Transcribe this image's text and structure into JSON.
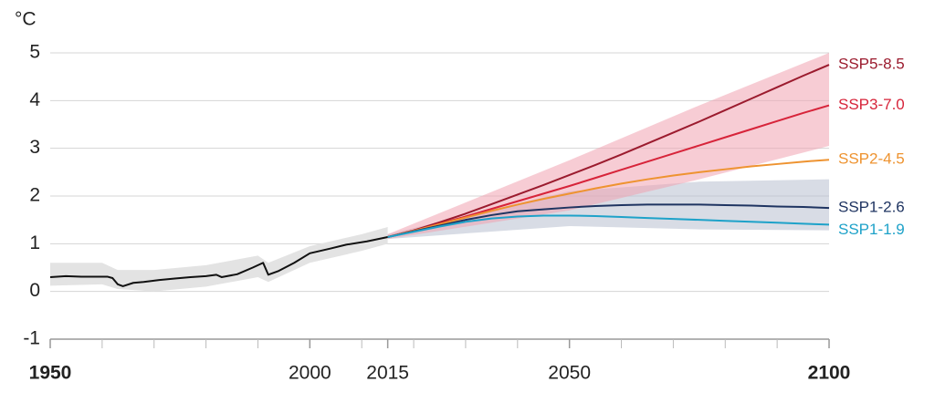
{
  "chart_data": {
    "type": "line",
    "y_unit": "°C",
    "xlim": [
      1950,
      2100
    ],
    "ylim": [
      -1,
      5
    ],
    "yticks": [
      -1,
      0,
      1,
      2,
      3,
      4,
      5
    ],
    "xticks": [
      1950,
      2000,
      2015,
      2050,
      2100
    ],
    "xminor_ticks": [
      1960,
      1970,
      1980,
      1990,
      2010,
      2020,
      2030,
      2040,
      2060,
      2070,
      2080,
      2090
    ],
    "grid": true,
    "historical": {
      "color": "#111111",
      "x": [
        1950,
        1953,
        1956,
        1961,
        1962,
        1963,
        1964,
        1966,
        1968,
        1971,
        1974,
        1977,
        1980,
        1982,
        1983,
        1986,
        1989,
        1991,
        1992,
        1994,
        1997,
        2000,
        2004,
        2007,
        2011,
        2015
      ],
      "values": [
        0.3,
        0.32,
        0.31,
        0.31,
        0.28,
        0.15,
        0.11,
        0.18,
        0.2,
        0.24,
        0.27,
        0.3,
        0.32,
        0.35,
        0.3,
        0.36,
        0.5,
        0.6,
        0.35,
        0.43,
        0.6,
        0.8,
        0.9,
        0.98,
        1.05,
        1.14
      ]
    },
    "bands": [
      {
        "color": "#e3e3e3",
        "x": [
          1950,
          1960,
          1963,
          1970,
          1980,
          1990,
          1992,
          2000,
          2010,
          2015
        ],
        "low": [
          0.12,
          0.15,
          0.05,
          0.0,
          0.1,
          0.3,
          0.2,
          0.6,
          0.85,
          1.0
        ],
        "high": [
          0.6,
          0.6,
          0.45,
          0.45,
          0.55,
          0.75,
          0.6,
          0.95,
          1.2,
          1.35
        ]
      },
      {
        "color": "#b8c0d0",
        "x": [
          2015,
          2050,
          2075,
          2100
        ],
        "low": [
          1.1,
          1.37,
          1.3,
          1.28
        ],
        "high": [
          1.2,
          2.1,
          2.3,
          2.35
        ]
      },
      {
        "color": "#f0a3b0",
        "x": [
          2015,
          2050,
          2075,
          2100
        ],
        "low": [
          1.1,
          1.7,
          2.35,
          3.05
        ],
        "high": [
          1.2,
          2.75,
          3.9,
          5.0
        ]
      }
    ],
    "x": [
      2015,
      2020,
      2025,
      2030,
      2035,
      2040,
      2045,
      2050,
      2055,
      2060,
      2065,
      2070,
      2075,
      2080,
      2085,
      2090,
      2095,
      2100
    ],
    "series": [
      {
        "name": "SSP5-8.5",
        "color": "#9b1b2e",
        "values": [
          1.14,
          1.28,
          1.45,
          1.63,
          1.83,
          2.03,
          2.23,
          2.44,
          2.65,
          2.87,
          3.1,
          3.33,
          3.56,
          3.8,
          4.04,
          4.28,
          4.52,
          4.75
        ]
      },
      {
        "name": "SSP3-7.0",
        "color": "#d7243a",
        "values": [
          1.14,
          1.27,
          1.42,
          1.57,
          1.73,
          1.89,
          2.05,
          2.21,
          2.38,
          2.55,
          2.72,
          2.89,
          3.06,
          3.23,
          3.4,
          3.57,
          3.74,
          3.9
        ]
      },
      {
        "name": "SSP2-4.5",
        "color": "#ee9330",
        "values": [
          1.14,
          1.27,
          1.41,
          1.55,
          1.69,
          1.82,
          1.94,
          2.05,
          2.16,
          2.26,
          2.35,
          2.43,
          2.5,
          2.56,
          2.62,
          2.67,
          2.72,
          2.76
        ]
      },
      {
        "name": "SSP1-2.6",
        "color": "#1f3461",
        "values": [
          1.14,
          1.26,
          1.38,
          1.5,
          1.6,
          1.68,
          1.72,
          1.76,
          1.79,
          1.81,
          1.82,
          1.82,
          1.82,
          1.81,
          1.8,
          1.78,
          1.77,
          1.75
        ]
      },
      {
        "name": "SSP1-1.9",
        "color": "#1ea2c9",
        "values": [
          1.14,
          1.25,
          1.36,
          1.46,
          1.53,
          1.57,
          1.59,
          1.59,
          1.58,
          1.56,
          1.54,
          1.52,
          1.5,
          1.48,
          1.46,
          1.44,
          1.42,
          1.4
        ]
      }
    ]
  }
}
